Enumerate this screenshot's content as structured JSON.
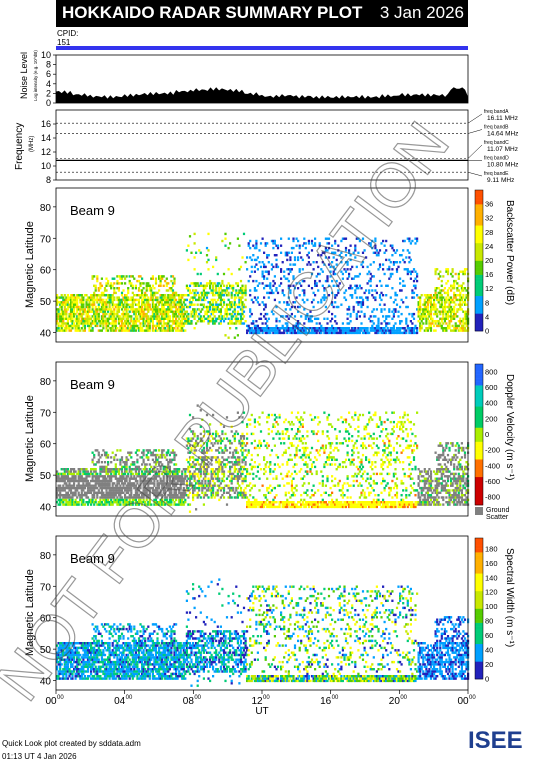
{
  "title": "HOKKAIDO RADAR SUMMARY PLOT",
  "date": "3 Jan 2026",
  "cpid_label": "CPID:",
  "cpid_value": "151",
  "footer_line1": "Quick Look plot created by sddata.adm",
  "footer_line2": "01:13 UT  4 Jan 2026",
  "watermark": "NOT FOR PUBLICATION",
  "logo_text": "ISEE",
  "colors": {
    "header_bg": "#000000",
    "cpid_bar": "#3333ee",
    "ground_scatter": "#808080",
    "logo_blue": "#1f3f8f",
    "logo_green": "#3aa83a"
  },
  "chart_data": [
    {
      "type": "area",
      "name": "noise-level",
      "ylabel": "Noise Level",
      "ylabel_sub": "Log intensity (e.g. 10^dB)",
      "ylim": [
        0,
        10
      ],
      "yticks": [
        "0",
        "2",
        "4",
        "6",
        "8",
        "10"
      ],
      "x": [
        0,
        1,
        2,
        3,
        4,
        5,
        6,
        7,
        8,
        9,
        10,
        11,
        12,
        13,
        14,
        15,
        16,
        17,
        18,
        19,
        20,
        21,
        22,
        23,
        24
      ],
      "values": [
        2.4,
        2.0,
        1.7,
        1.6,
        1.8,
        1.9,
        1.8,
        2.1,
        2.4,
        2.7,
        2.6,
        2.1,
        1.7,
        1.9,
        1.6,
        1.3,
        1.1,
        1.0,
        0.9,
        1.2,
        1.6,
        1.8,
        1.9,
        3.4,
        1.3
      ]
    },
    {
      "type": "line",
      "name": "frequency",
      "ylabel": "Frequency",
      "yunit": "(MHz)",
      "ylim": [
        8,
        18
      ],
      "yticks": [
        "8",
        "10",
        "12",
        "14",
        "16"
      ],
      "bands": [
        {
          "label": "freq bandA",
          "value": "16.11 MHz",
          "freq": 16.11
        },
        {
          "label": "freq bandB",
          "value": "14.64 MHz",
          "freq": 14.64
        },
        {
          "label": "freq bandC",
          "value": "11.07 MHz",
          "freq": 11.07
        },
        {
          "label": "freq bandD",
          "value": "10.80 MHz",
          "freq": 10.8
        },
        {
          "label": "freq bandE",
          "value": "9.11 MHz",
          "freq": 9.11
        }
      ],
      "x": [
        0,
        24
      ],
      "values": [
        10.8,
        10.8
      ]
    },
    {
      "type": "heatmap",
      "name": "backscatter-power",
      "beam_label": "Beam  9",
      "ylabel": "Magnetic Latitude",
      "ylim": [
        37,
        86
      ],
      "yticks": [
        "40",
        "50",
        "60",
        "70",
        "80"
      ],
      "colorbar_label": "Backscatter Power (dB)",
      "colorbar_ticks": [
        "0",
        "4",
        "8",
        "12",
        "16",
        "20",
        "24",
        "28",
        "32",
        "36"
      ],
      "colorbar_range": [
        0,
        40
      ]
    },
    {
      "type": "heatmap",
      "name": "doppler-velocity",
      "beam_label": "Beam  9",
      "ylabel": "Magnetic Latitude",
      "ylim": [
        37,
        86
      ],
      "yticks": [
        "40",
        "50",
        "60",
        "70",
        "80"
      ],
      "colorbar_label": "Doppler Velocity (m s⁻¹)",
      "colorbar_ticks": [
        "-800",
        "-600",
        "-400",
        "-200",
        "0",
        "200",
        "400",
        "600",
        "800"
      ],
      "colorbar_range": [
        -900,
        900
      ],
      "ground_label_1": "Ground",
      "ground_label_2": "Scatter"
    },
    {
      "type": "heatmap",
      "name": "spectral-width",
      "beam_label": "Beam  9",
      "ylabel": "Magnetic Latitude",
      "ylim": [
        37,
        86
      ],
      "yticks": [
        "40",
        "50",
        "60",
        "70",
        "80"
      ],
      "colorbar_label": "Spectral Width (m s⁻¹)",
      "colorbar_ticks": [
        "0",
        "20",
        "40",
        "60",
        "80",
        "100",
        "120",
        "140",
        "160",
        "180"
      ],
      "colorbar_range": [
        0,
        195
      ],
      "xlabel": "UT",
      "xticks": [
        "00",
        "04",
        "08",
        "12",
        "16",
        "20",
        "00"
      ],
      "xtick_suffix": "00",
      "xlim": [
        0,
        24
      ]
    }
  ]
}
